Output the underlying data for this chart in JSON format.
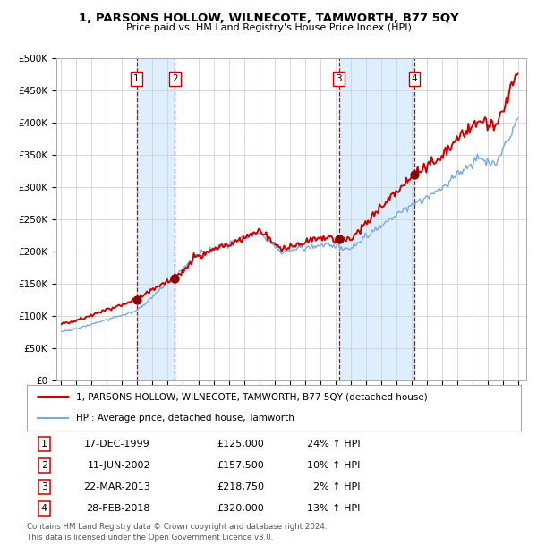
{
  "title": "1, PARSONS HOLLOW, WILNECOTE, TAMWORTH, B77 5QY",
  "subtitle": "Price paid vs. HM Land Registry's House Price Index (HPI)",
  "sale_prices": [
    125000,
    157500,
    218750,
    320000
  ],
  "sale_labels": [
    "1",
    "2",
    "3",
    "4"
  ],
  "sale_info": [
    [
      "1",
      "17-DEC-1999",
      "£125,000",
      "24% ↑ HPI"
    ],
    [
      "2",
      "11-JUN-2002",
      "£157,500",
      "10% ↑ HPI"
    ],
    [
      "3",
      "22-MAR-2013",
      "£218,750",
      "2% ↑ HPI"
    ],
    [
      "4",
      "28-FEB-2018",
      "£320,000",
      "13% ↑ HPI"
    ]
  ],
  "hpi_line_color": "#7aaadd",
  "property_line_color": "#cc0000",
  "sale_marker_color": "#880000",
  "vband_color": "#ddeeff",
  "vline_color": "#cc0000",
  "legend_label_property": "1, PARSONS HOLLOW, WILNECOTE, TAMWORTH, B77 5QY (detached house)",
  "legend_label_hpi": "HPI: Average price, detached house, Tamworth",
  "footer": "Contains HM Land Registry data © Crown copyright and database right 2024.\nThis data is licensed under the Open Government Licence v3.0.",
  "ylim": [
    0,
    500000
  ],
  "yticks": [
    0,
    50000,
    100000,
    150000,
    200000,
    250000,
    300000,
    350000,
    400000,
    450000,
    500000
  ],
  "xlim_start": 1994.7,
  "xlim_end": 2025.5,
  "sale_years_float": [
    1999.958,
    2002.458,
    2013.222,
    2018.167
  ]
}
